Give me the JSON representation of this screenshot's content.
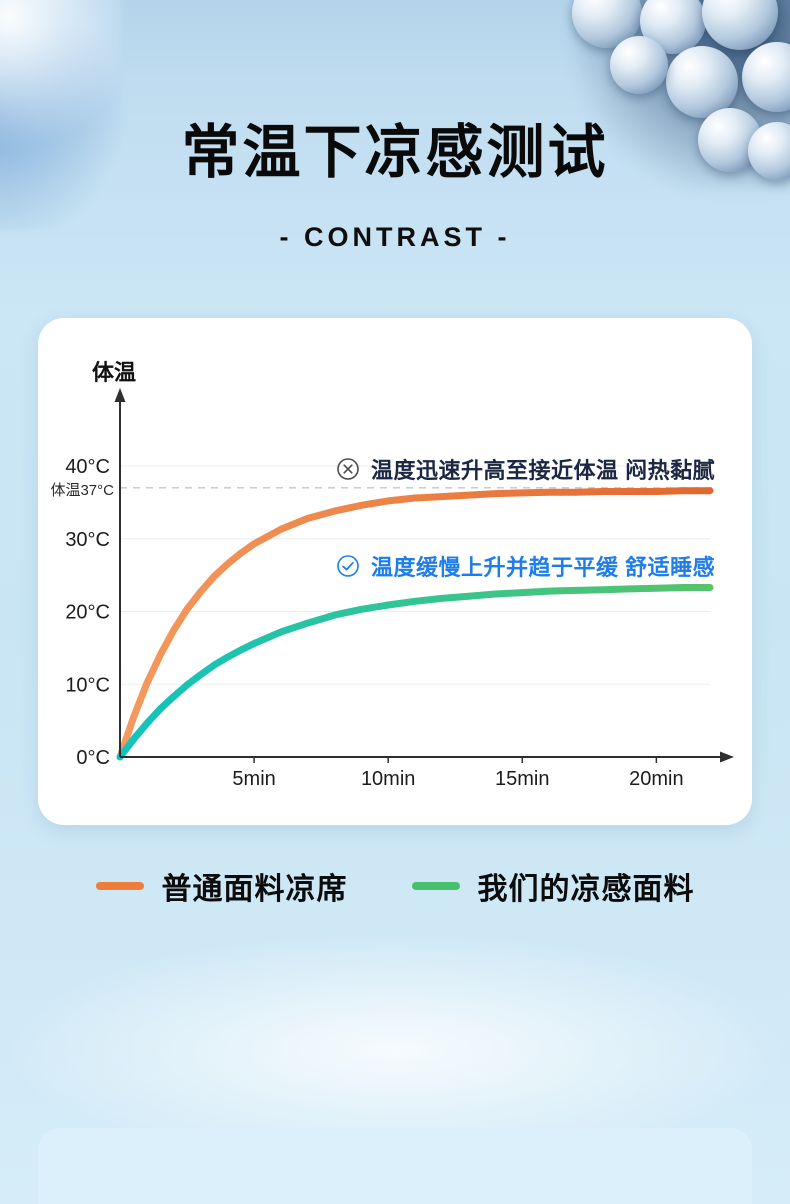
{
  "header": {
    "title": "常温下凉感测试",
    "subtitle": "- CONTRAST -"
  },
  "chart_data": {
    "type": "line",
    "title": "常温下凉感测试",
    "y_axis_title": "体温",
    "x_tick_values": [
      5,
      10,
      15,
      20
    ],
    "x_tick_labels": [
      "5min",
      "10min",
      "15min",
      "20min"
    ],
    "y_tick_values": [
      0,
      10,
      20,
      30,
      40
    ],
    "y_tick_labels": [
      "0°C",
      "10°C",
      "20°C",
      "30°C",
      "40°C"
    ],
    "reference_line": {
      "value": 37,
      "label": "体温37°C"
    },
    "xlim": [
      0,
      22
    ],
    "ylim": [
      0,
      44
    ],
    "grid": "horizontal",
    "legend_position": "below",
    "x": [
      0,
      0.5,
      1,
      1.5,
      2,
      2.5,
      3,
      3.5,
      4,
      4.5,
      5,
      6,
      7,
      8,
      9,
      10,
      11,
      12,
      13,
      14,
      15,
      16,
      17,
      18,
      19,
      20,
      21,
      22
    ],
    "series": [
      {
        "name": "普通面料凉席",
        "gradient": [
          "#f49a5e",
          "#e2672d"
        ],
        "legend_color": "#ed7d3a",
        "values": [
          0,
          5.4,
          10.1,
          14.0,
          17.4,
          20.3,
          22.7,
          24.8,
          26.5,
          28.0,
          29.3,
          31.3,
          32.8,
          33.8,
          34.6,
          35.2,
          35.6,
          35.8,
          36.0,
          36.2,
          36.3,
          36.4,
          36.4,
          36.5,
          36.5,
          36.5,
          36.6,
          36.6
        ]
      },
      {
        "name": "我们的凉感面料",
        "gradient": [
          "#12c3bd",
          "#55c46a"
        ],
        "legend_color": "#47c06c",
        "values": [
          0,
          2.4,
          4.6,
          6.6,
          8.3,
          9.9,
          11.3,
          12.6,
          13.7,
          14.7,
          15.6,
          17.2,
          18.4,
          19.5,
          20.3,
          20.9,
          21.4,
          21.8,
          22.1,
          22.4,
          22.6,
          22.8,
          22.9,
          23.0,
          23.1,
          23.2,
          23.3,
          23.3
        ]
      }
    ],
    "annotations": [
      {
        "icon": "circle-x-icon",
        "text": "温度迅速升高至接近体温 闷热黏腻",
        "color": "#1c2743",
        "icon_color": "#4d4d4d"
      },
      {
        "icon": "circle-check-icon",
        "text": "温度缓慢上升并趋于平缓 舒适睡感",
        "color": "#1f7de9",
        "icon_color": "#1f7de9"
      }
    ]
  }
}
